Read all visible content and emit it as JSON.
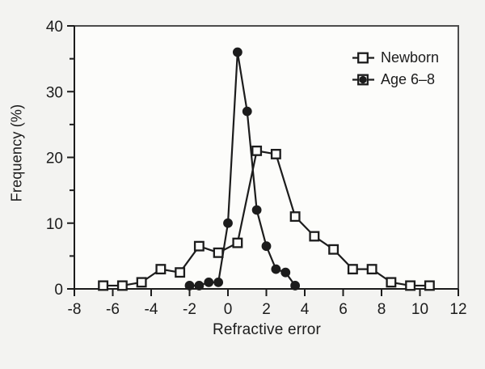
{
  "colors": {
    "ink": "#1c1c1c",
    "frame": "#4c4c4c",
    "background": "#f3f3f1",
    "plot_background": "#fcfcfa"
  },
  "legend": {
    "items": [
      {
        "label": "Newborn",
        "marker": "open-square"
      },
      {
        "label": "Age 6–8",
        "marker": "filled-circle"
      }
    ]
  },
  "chart_data": {
    "type": "line",
    "title": "",
    "xlabel": "Refractive error",
    "ylabel": "Frequency (%)",
    "xlim": [
      -8,
      12
    ],
    "ylim": [
      0,
      40
    ],
    "grid": false,
    "legend_position": "top-right-inside",
    "x_ticks": [
      -8,
      -6,
      -4,
      -2,
      0,
      2,
      4,
      6,
      8,
      10,
      12
    ],
    "x_tick_labels": [
      "-8",
      "-6",
      "-4",
      "-2",
      "0",
      "2",
      "4",
      "6",
      "8",
      "10",
      "12"
    ],
    "y_ticks": [
      0,
      10,
      20,
      30,
      40
    ],
    "y_tick_labels": [
      "0",
      "10",
      "20",
      "30",
      "40"
    ],
    "y_minor_ticks": [
      5,
      15,
      25,
      35
    ],
    "series": [
      {
        "name": "Newborn",
        "marker": "open-square",
        "x": [
          -6.5,
          -5.5,
          -4.5,
          -3.5,
          -2.5,
          -1.5,
          -0.5,
          0.5,
          1.5,
          2.5,
          3.5,
          4.5,
          5.5,
          6.5,
          7.5,
          8.5,
          9.5,
          10.5
        ],
        "y": [
          0.5,
          0.5,
          1,
          3,
          2.5,
          6.5,
          5.5,
          7,
          21,
          20.5,
          11,
          8,
          6,
          3,
          3,
          1,
          0.5,
          0.5
        ]
      },
      {
        "name": "Age 6–8",
        "marker": "filled-circle",
        "x": [
          -2,
          -1.5,
          -1,
          -0.5,
          0,
          0.5,
          1,
          1.5,
          2,
          2.5,
          3,
          3.5
        ],
        "y": [
          0.5,
          0.5,
          1,
          1,
          10,
          36,
          27,
          12,
          6.5,
          3,
          2.5,
          0.5
        ]
      }
    ]
  }
}
